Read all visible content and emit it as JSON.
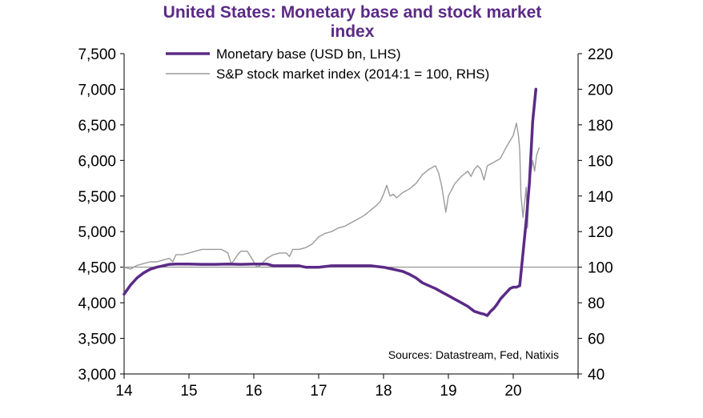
{
  "chart_data": {
    "type": "line",
    "title_line1": "United States: Monetary base and stock market",
    "title_line2": "index",
    "source": "Sources:  Datastream,  Fed, Natixis",
    "x_tick_labels": [
      "14",
      "15",
      "16",
      "17",
      "18",
      "19",
      "20"
    ],
    "xlim": [
      2014.0,
      2021.0
    ],
    "left_axis": {
      "ylim": [
        3000,
        7500
      ],
      "tick_values": [
        3000,
        3500,
        4000,
        4500,
        5000,
        5500,
        6000,
        6500,
        7000,
        7500
      ],
      "tick_labels": [
        "3,000",
        "3,500",
        "4,000",
        "4,500",
        "5,000",
        "5,500",
        "6,000",
        "6,500",
        "7,000",
        "7,500"
      ]
    },
    "right_axis": {
      "ylim": [
        40,
        220
      ],
      "tick_values": [
        40,
        60,
        80,
        100,
        120,
        140,
        160,
        180,
        200,
        220
      ],
      "tick_labels": [
        "40",
        "60",
        "80",
        "100",
        "120",
        "140",
        "160",
        "180",
        "200",
        "220"
      ]
    },
    "reference_line_rhs": 100,
    "legend_position": "top",
    "series": [
      {
        "name": "Monetary base (USD bn, LHS)",
        "axis": "left",
        "color": "#5b2a86",
        "x": [
          2014.0,
          2014.1,
          2014.2,
          2014.3,
          2014.4,
          2014.5,
          2014.6,
          2014.7,
          2014.8,
          2014.9,
          2015.0,
          2015.2,
          2015.4,
          2015.6,
          2015.8,
          2016.0,
          2016.1,
          2016.2,
          2016.3,
          2016.5,
          2016.7,
          2016.8,
          2016.9,
          2017.0,
          2017.2,
          2017.4,
          2017.6,
          2017.8,
          2018.0,
          2018.1,
          2018.2,
          2018.3,
          2018.4,
          2018.5,
          2018.6,
          2018.7,
          2018.8,
          2018.9,
          2019.0,
          2019.1,
          2019.2,
          2019.3,
          2019.4,
          2019.5,
          2019.55,
          2019.6,
          2019.65,
          2019.7,
          2019.75,
          2019.8,
          2019.85,
          2019.9,
          2019.95,
          2020.0,
          2020.05,
          2020.1,
          2020.15,
          2020.2,
          2020.25,
          2020.3,
          2020.35
        ],
        "values": [
          4120,
          4250,
          4350,
          4420,
          4470,
          4500,
          4520,
          4540,
          4545,
          4545,
          4545,
          4540,
          4540,
          4545,
          4540,
          4545,
          4545,
          4545,
          4520,
          4520,
          4520,
          4500,
          4500,
          4500,
          4520,
          4520,
          4520,
          4520,
          4500,
          4480,
          4460,
          4440,
          4400,
          4350,
          4280,
          4240,
          4200,
          4150,
          4100,
          4050,
          4000,
          3950,
          3880,
          3850,
          3840,
          3820,
          3880,
          3920,
          3980,
          4050,
          4100,
          4150,
          4200,
          4220,
          4220,
          4240,
          4700,
          5150,
          5700,
          6550,
          7000
        ]
      },
      {
        "name": "S&P stock market index (2014:1 = 100, RHS)",
        "axis": "right",
        "color": "#9b9b9b",
        "x": [
          2014.0,
          2014.1,
          2014.2,
          2014.3,
          2014.4,
          2014.5,
          2014.6,
          2014.7,
          2014.75,
          2014.8,
          2014.9,
          2015.0,
          2015.1,
          2015.2,
          2015.3,
          2015.4,
          2015.5,
          2015.6,
          2015.65,
          2015.7,
          2015.75,
          2015.8,
          2015.9,
          2016.0,
          2016.05,
          2016.1,
          2016.2,
          2016.3,
          2016.4,
          2016.5,
          2016.55,
          2016.6,
          2016.7,
          2016.8,
          2016.9,
          2017.0,
          2017.1,
          2017.2,
          2017.3,
          2017.4,
          2017.5,
          2017.6,
          2017.7,
          2017.8,
          2017.9,
          2017.95,
          2018.0,
          2018.05,
          2018.1,
          2018.15,
          2018.2,
          2018.3,
          2018.4,
          2018.5,
          2018.6,
          2018.7,
          2018.75,
          2018.8,
          2018.85,
          2018.9,
          2018.93,
          2018.96,
          2019.0,
          2019.1,
          2019.2,
          2019.3,
          2019.35,
          2019.4,
          2019.45,
          2019.5,
          2019.55,
          2019.6,
          2019.7,
          2019.8,
          2019.9,
          2020.0,
          2020.05,
          2020.08,
          2020.1,
          2020.12,
          2020.15,
          2020.18,
          2020.2,
          2020.22,
          2020.25,
          2020.28,
          2020.3,
          2020.33,
          2020.36,
          2020.4
        ],
        "values": [
          100,
          99,
          101,
          102,
          103,
          103,
          104,
          105,
          103,
          107,
          107,
          108,
          109,
          110,
          110,
          110,
          110,
          108,
          102,
          104,
          107,
          109,
          109,
          103,
          100,
          101,
          105,
          107,
          108,
          108,
          106,
          110,
          110,
          111,
          113,
          117,
          119,
          120,
          122,
          123,
          125,
          127,
          129,
          132,
          135,
          137,
          141,
          146,
          140,
          141,
          139,
          142,
          144,
          147,
          152,
          155,
          156,
          157,
          153,
          145,
          138,
          131,
          140,
          147,
          151,
          154,
          151,
          155,
          157,
          155,
          149,
          157,
          159,
          161,
          168,
          174,
          181,
          174,
          166,
          140,
          128,
          138,
          145,
          122,
          150,
          155,
          160,
          154,
          163,
          167
        ]
      }
    ]
  }
}
